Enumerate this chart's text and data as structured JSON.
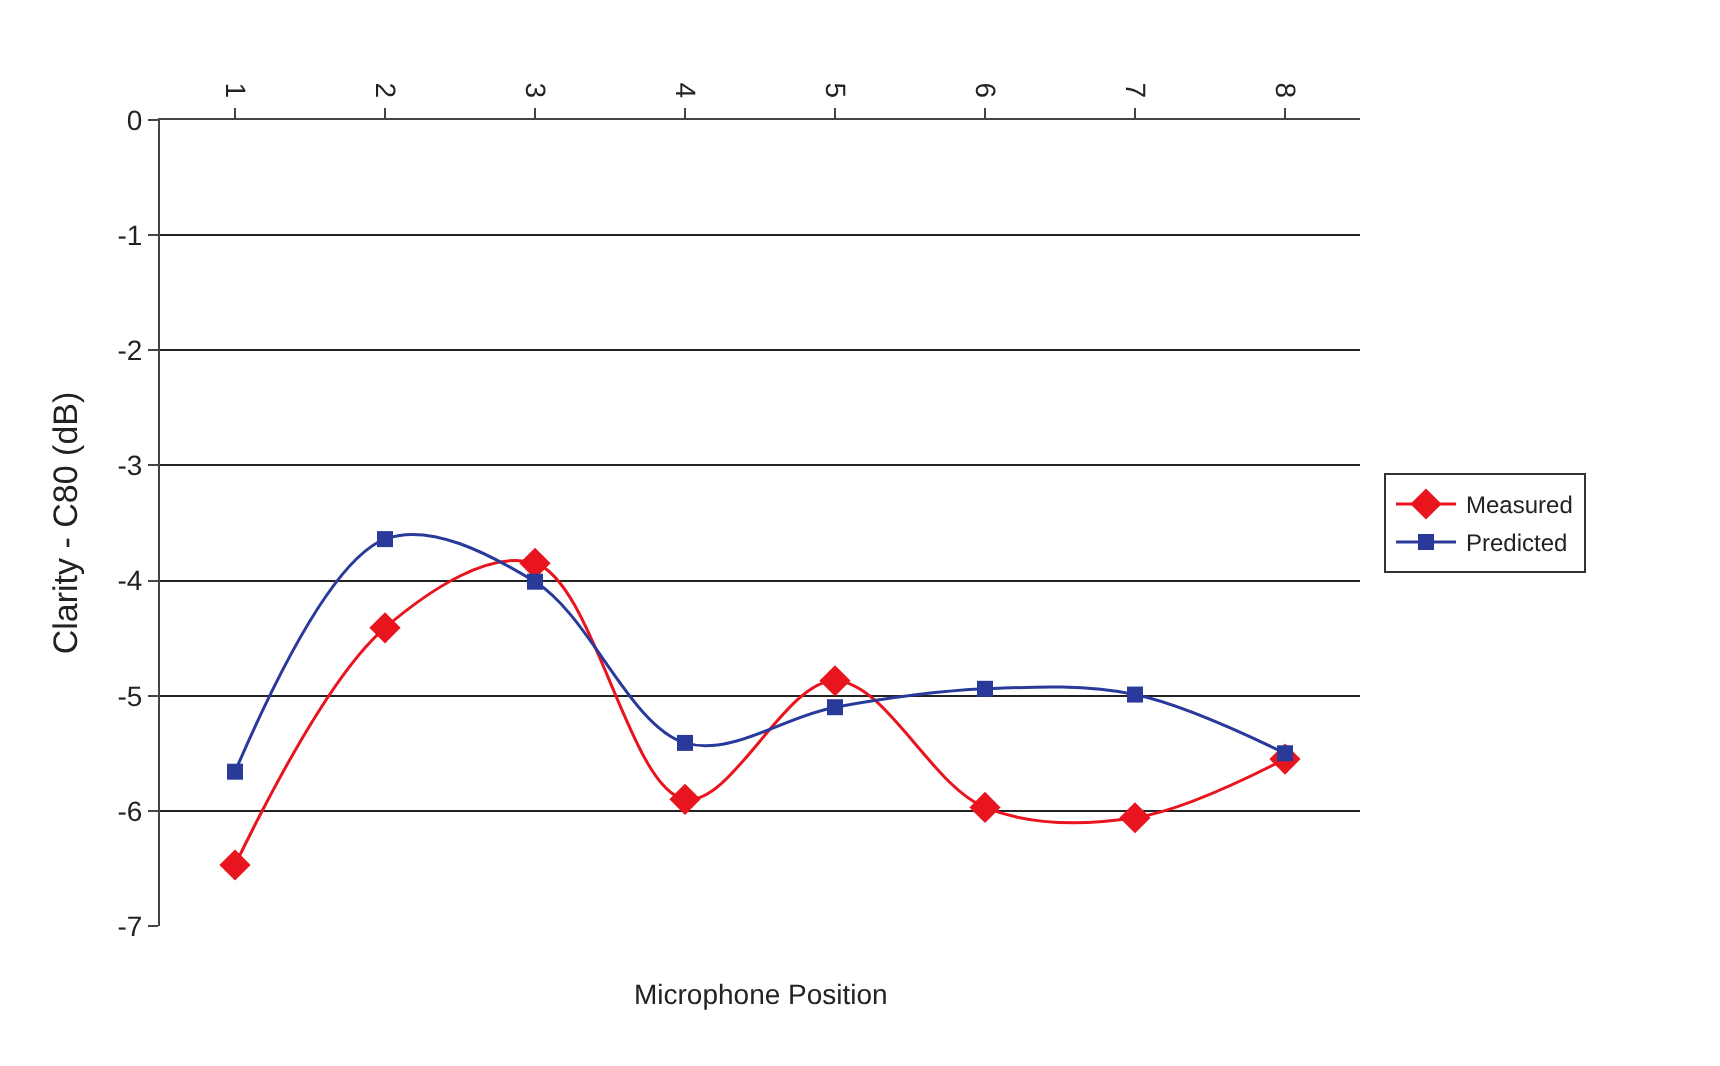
{
  "chart_data": {
    "type": "line",
    "xlabel": "Microphone Position",
    "ylabel": "Clarity - C80 (dB)",
    "categories": [
      "1",
      "2",
      "3",
      "4",
      "5",
      "6",
      "7",
      "8"
    ],
    "series": [
      {
        "name": "Measured",
        "color": "#e8141e",
        "marker": "diamond",
        "values": [
          -6.47,
          -4.41,
          -3.85,
          -5.9,
          -4.87,
          -5.97,
          -6.06,
          -5.55
        ]
      },
      {
        "name": "Predicted",
        "color": "#2a3a9a",
        "marker": "square",
        "values": [
          -5.66,
          -3.64,
          -4.01,
          -5.41,
          -5.1,
          -4.94,
          -4.99,
          -5.5
        ]
      }
    ],
    "ylim": [
      -7,
      0
    ],
    "yticks": [
      -7,
      -6,
      -5,
      -4,
      -3,
      -2,
      -1,
      0
    ],
    "grid": "y",
    "legend": "right",
    "line_style": "solid"
  }
}
